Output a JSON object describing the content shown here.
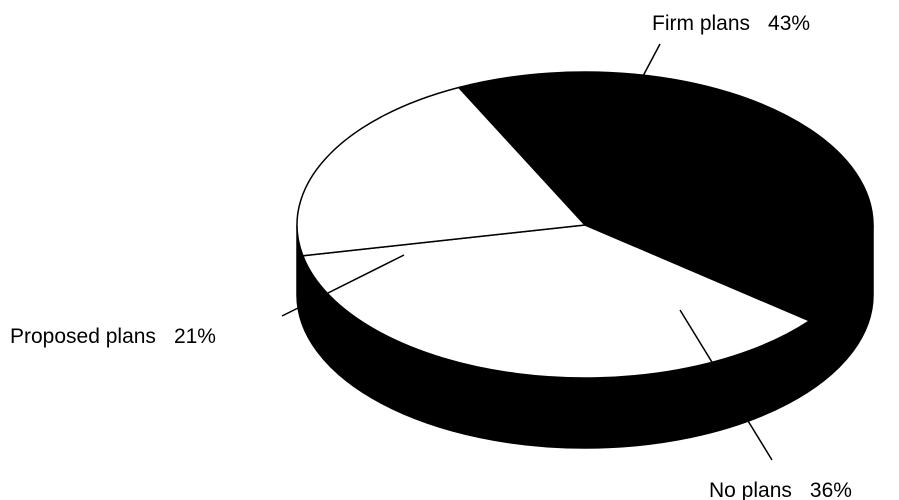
{
  "chart_data": {
    "type": "pie",
    "style": "3d",
    "slices": [
      {
        "label": "Firm plans",
        "value": 43,
        "value_label": "43%",
        "color": "#000000"
      },
      {
        "label": "No plans",
        "value": 36,
        "value_label": "36%",
        "color": "#ffffff"
      },
      {
        "label": "Proposed plans",
        "value": 21,
        "value_label": "21%",
        "color": "#ffffff"
      }
    ],
    "outline_color": "#000000",
    "side_color": "#000000"
  }
}
